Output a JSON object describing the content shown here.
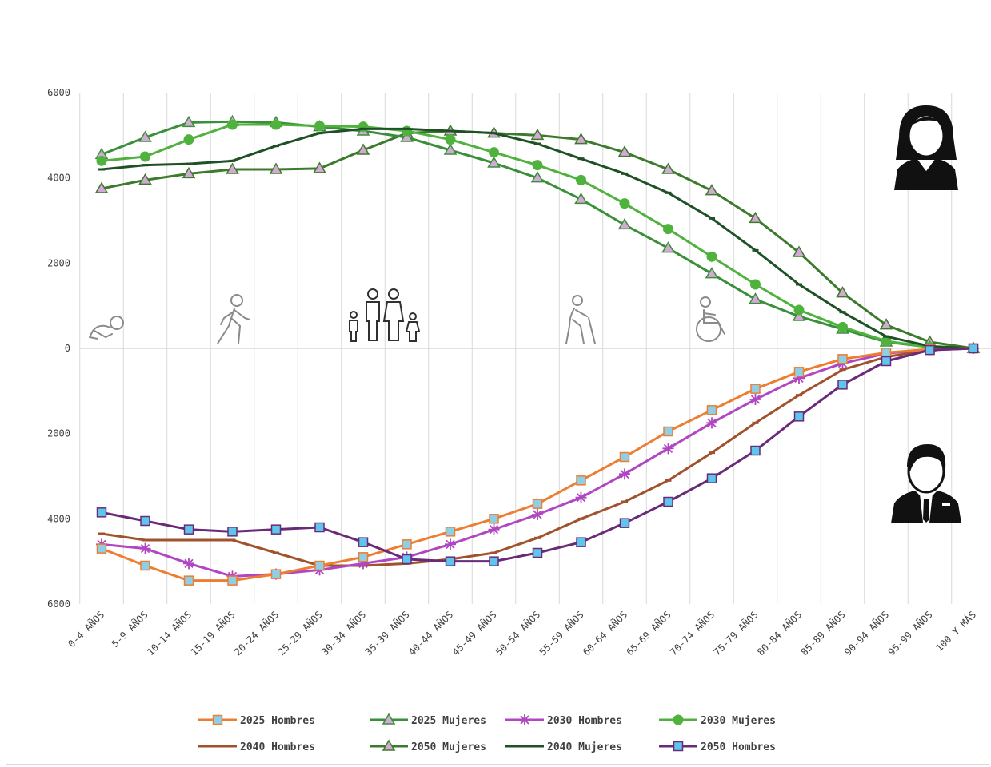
{
  "chart_data": {
    "type": "line",
    "categories": [
      "0-4 AÑOS",
      "5-9 AÑOS",
      "10-14 AÑOS",
      "15-19 AÑOS",
      "20-24 AÑOS",
      "25-29 AÑOS",
      "30-34 AÑOS",
      "35-39 AÑOS",
      "40-44 AÑOS",
      "45-49 AÑOS",
      "50-54 AÑOS",
      "55-59 AÑOS",
      "60-64 AÑOS",
      "65-69 AÑOS",
      "70-74 AÑOS",
      "75-79 AÑOS",
      "80-84 AÑOS",
      "85-89 AÑOS",
      "90-94 AÑOS",
      "95-99 AÑOS",
      "100 Y MÁS"
    ],
    "y_tick_labels": [
      "6000",
      "4000",
      "2000",
      "0",
      "2000",
      "4000",
      "6000"
    ],
    "ylim": [
      -6000,
      6000
    ],
    "grid": "vertical",
    "legend_position": "bottom",
    "y_note": "men plotted as negative values; axis labels shown as absolute values",
    "series": [
      {
        "name": "2025 Hombres",
        "color": "#ed7d31",
        "marker": "square-fill",
        "marker_fill": "#8ecfe8",
        "values": [
          -4700,
          -5100,
          -5450,
          -5450,
          -5300,
          -5100,
          -4900,
          -4600,
          -4300,
          -4000,
          -3650,
          -3100,
          -2550,
          -1950,
          -1450,
          -950,
          -550,
          -250,
          -100,
          -20,
          0
        ]
      },
      {
        "name": "2025 Mujeres",
        "color": "#3a8f3a",
        "marker": "triangle",
        "marker_fill": "#d4a9d6",
        "values": [
          4550,
          4950,
          5300,
          5320,
          5300,
          5200,
          5100,
          4950,
          4650,
          4350,
          4000,
          3500,
          2900,
          2350,
          1750,
          1150,
          750,
          450,
          150,
          30,
          0
        ]
      },
      {
        "name": "2030 Hombres",
        "color": "#b146c2",
        "marker": "star",
        "values": [
          -4600,
          -4700,
          -5050,
          -5350,
          -5300,
          -5200,
          -5050,
          -4900,
          -4600,
          -4250,
          -3900,
          -3500,
          -2950,
          -2350,
          -1750,
          -1200,
          -700,
          -350,
          -120,
          -25,
          0
        ]
      },
      {
        "name": "2030 Mujeres",
        "color": "#4fb23d",
        "marker": "circle",
        "values": [
          4400,
          4500,
          4900,
          5250,
          5250,
          5220,
          5200,
          5100,
          4900,
          4600,
          4300,
          3950,
          3400,
          2800,
          2150,
          1500,
          900,
          500,
          170,
          30,
          0
        ]
      },
      {
        "name": "2040 Hombres",
        "color": "#a0522d",
        "marker": "dash",
        "values": [
          -4350,
          -4500,
          -4500,
          -4500,
          -4800,
          -5100,
          -5100,
          -5050,
          -4950,
          -4800,
          -4450,
          -4000,
          -3600,
          -3100,
          -2450,
          -1750,
          -1100,
          -500,
          -200,
          -40,
          0
        ]
      },
      {
        "name": "2050 Mujeres",
        "color": "#3d7a2c",
        "marker": "triangle",
        "marker_fill": "#d4a9d6",
        "values": [
          3750,
          3950,
          4100,
          4200,
          4200,
          4220,
          4650,
          5050,
          5100,
          5050,
          5000,
          4900,
          4600,
          4200,
          3700,
          3050,
          2250,
          1300,
          550,
          150,
          0
        ]
      },
      {
        "name": "2040 Mujeres",
        "color": "#1e5125",
        "marker": "dash",
        "values": [
          4200,
          4300,
          4330,
          4400,
          4750,
          5050,
          5150,
          5150,
          5100,
          5050,
          4800,
          4450,
          4100,
          3650,
          3050,
          2300,
          1500,
          850,
          280,
          50,
          0
        ]
      },
      {
        "name": "2050 Hombres",
        "color": "#6a2a78",
        "marker": "square-fill",
        "marker_fill": "#5ec6ec",
        "values": [
          -3850,
          -4050,
          -4250,
          -4300,
          -4250,
          -4200,
          -4550,
          -4950,
          -5000,
          -5000,
          -4800,
          -4550,
          -4100,
          -3600,
          -3050,
          -2400,
          -1600,
          -850,
          -300,
          -40,
          0
        ]
      }
    ]
  },
  "legend": {
    "row1": [
      "2025 Hombres",
      "2025 Mujeres",
      "2030 Hombres",
      "2030 Mujeres"
    ],
    "row2": [
      "2040 Hombres",
      "2050 Mujeres",
      "2040 Mujeres",
      "2050 Hombres"
    ]
  },
  "icons": [
    "baby-crawling-icon",
    "walking-person-icon",
    "family-icon",
    "elderly-cane-icon",
    "wheelchair-icon",
    "woman-avatar-icon",
    "man-avatar-icon"
  ],
  "colors": {
    "grid": "#d9d9d9",
    "axis_text": "#404040",
    "icon_dark": "#111111",
    "icon_light": "#8a8a8a"
  }
}
